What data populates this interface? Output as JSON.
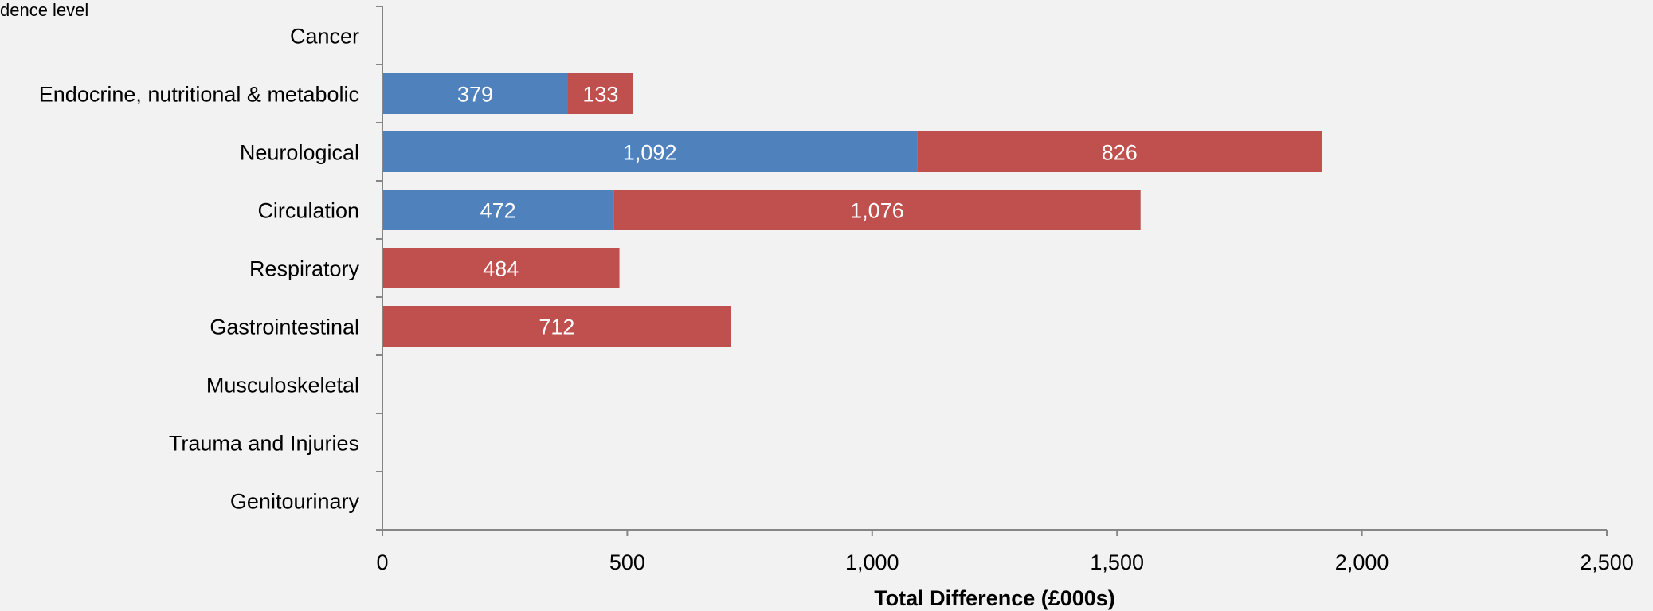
{
  "corner_text": "dence level",
  "chart_data": {
    "type": "bar",
    "orientation": "horizontal",
    "stacked": true,
    "categories": [
      "Cancer",
      "Endocrine, nutritional & metabolic",
      "Neurological",
      "Circulation",
      "Respiratory",
      "Gastrointestinal",
      "Musculoskeletal",
      "Trauma and Injuries",
      "Genitourinary"
    ],
    "series": [
      {
        "color": "#4f81bd",
        "values": [
          null,
          379,
          1092,
          472,
          null,
          null,
          null,
          null,
          null
        ]
      },
      {
        "color": "#c0504d",
        "values": [
          null,
          133,
          826,
          1076,
          484,
          712,
          null,
          null,
          null
        ]
      }
    ],
    "xlabel": "Total Difference (£000s)",
    "xlim": [
      0,
      2500
    ],
    "xticks": [
      0,
      500,
      1000,
      1500,
      2000,
      2500
    ],
    "grid": false,
    "legend": "none"
  }
}
